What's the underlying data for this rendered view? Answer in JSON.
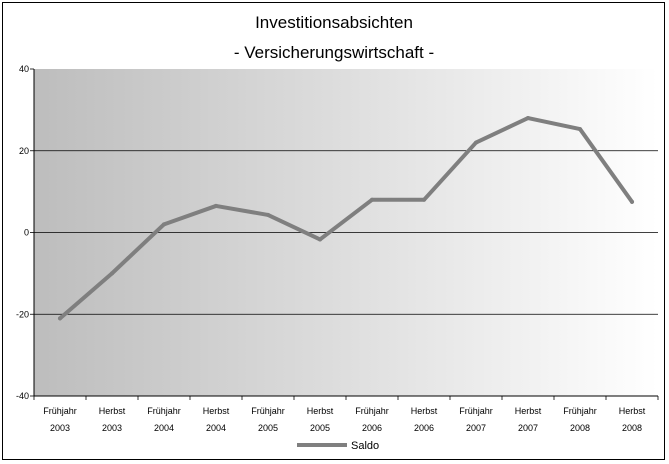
{
  "chart_data": {
    "type": "line",
    "title": "Investitionsabsichten",
    "subtitle": "- Versicherungswirtschaft -",
    "xlabel": "",
    "ylabel": "",
    "categories": [
      [
        "Frühjahr",
        "2003"
      ],
      [
        "Herbst",
        "2003"
      ],
      [
        "Frühjahr",
        "2004"
      ],
      [
        "Herbst",
        "2004"
      ],
      [
        "Frühjahr",
        "2005"
      ],
      [
        "Herbst",
        "2005"
      ],
      [
        "Frühjahr",
        "2006"
      ],
      [
        "Herbst",
        "2006"
      ],
      [
        "Frühjahr",
        "2007"
      ],
      [
        "Herbst",
        "2007"
      ],
      [
        "Frühjahr",
        "2008"
      ],
      [
        "Herbst",
        "2008"
      ]
    ],
    "series": [
      {
        "name": "Saldo",
        "color": "#7f7f7f",
        "values": [
          -21,
          -10,
          2,
          6.5,
          4.3,
          -1.7,
          8,
          8,
          22,
          28,
          25.3,
          7.5
        ]
      }
    ],
    "ylim": [
      -40,
      40
    ],
    "yticks": [
      "-40",
      "-20",
      "0",
      "20",
      "40"
    ],
    "grid": true,
    "legend": "bottom",
    "background": "gradient-gray-to-white"
  }
}
